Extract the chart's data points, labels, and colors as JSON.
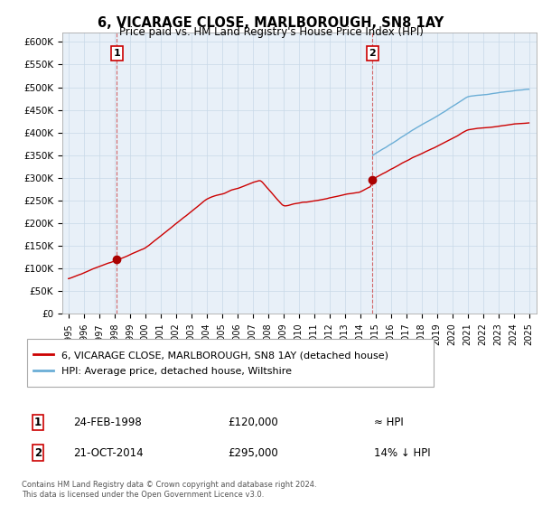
{
  "title": "6, VICARAGE CLOSE, MARLBOROUGH, SN8 1AY",
  "subtitle": "Price paid vs. HM Land Registry's House Price Index (HPI)",
  "ylim": [
    0,
    620000
  ],
  "yticks": [
    0,
    50000,
    100000,
    150000,
    200000,
    250000,
    300000,
    350000,
    400000,
    450000,
    500000,
    550000,
    600000
  ],
  "ytick_labels": [
    "£0",
    "£50K",
    "£100K",
    "£150K",
    "£200K",
    "£250K",
    "£300K",
    "£350K",
    "£400K",
    "£450K",
    "£500K",
    "£550K",
    "£600K"
  ],
  "sale1_x": 1998.15,
  "sale1_price": 120000,
  "sale2_x": 2014.8,
  "sale2_price": 295000,
  "hpi_color": "#6baed6",
  "price_color": "#cc0000",
  "sale_marker_color": "#aa0000",
  "chart_bg": "#e8f0f8",
  "legend_label1": "6, VICARAGE CLOSE, MARLBOROUGH, SN8 1AY (detached house)",
  "legend_label2": "HPI: Average price, detached house, Wiltshire",
  "annotation1_label": "1",
  "annotation1_date": "24-FEB-1998",
  "annotation1_price": "£120,000",
  "annotation1_hpi": "≈ HPI",
  "annotation2_label": "2",
  "annotation2_date": "21-OCT-2014",
  "annotation2_price": "£295,000",
  "annotation2_hpi": "14% ↓ HPI",
  "footnote": "Contains HM Land Registry data © Crown copyright and database right 2024.\nThis data is licensed under the Open Government Licence v3.0.",
  "background_color": "#ffffff",
  "grid_color": "#c8d8e8"
}
